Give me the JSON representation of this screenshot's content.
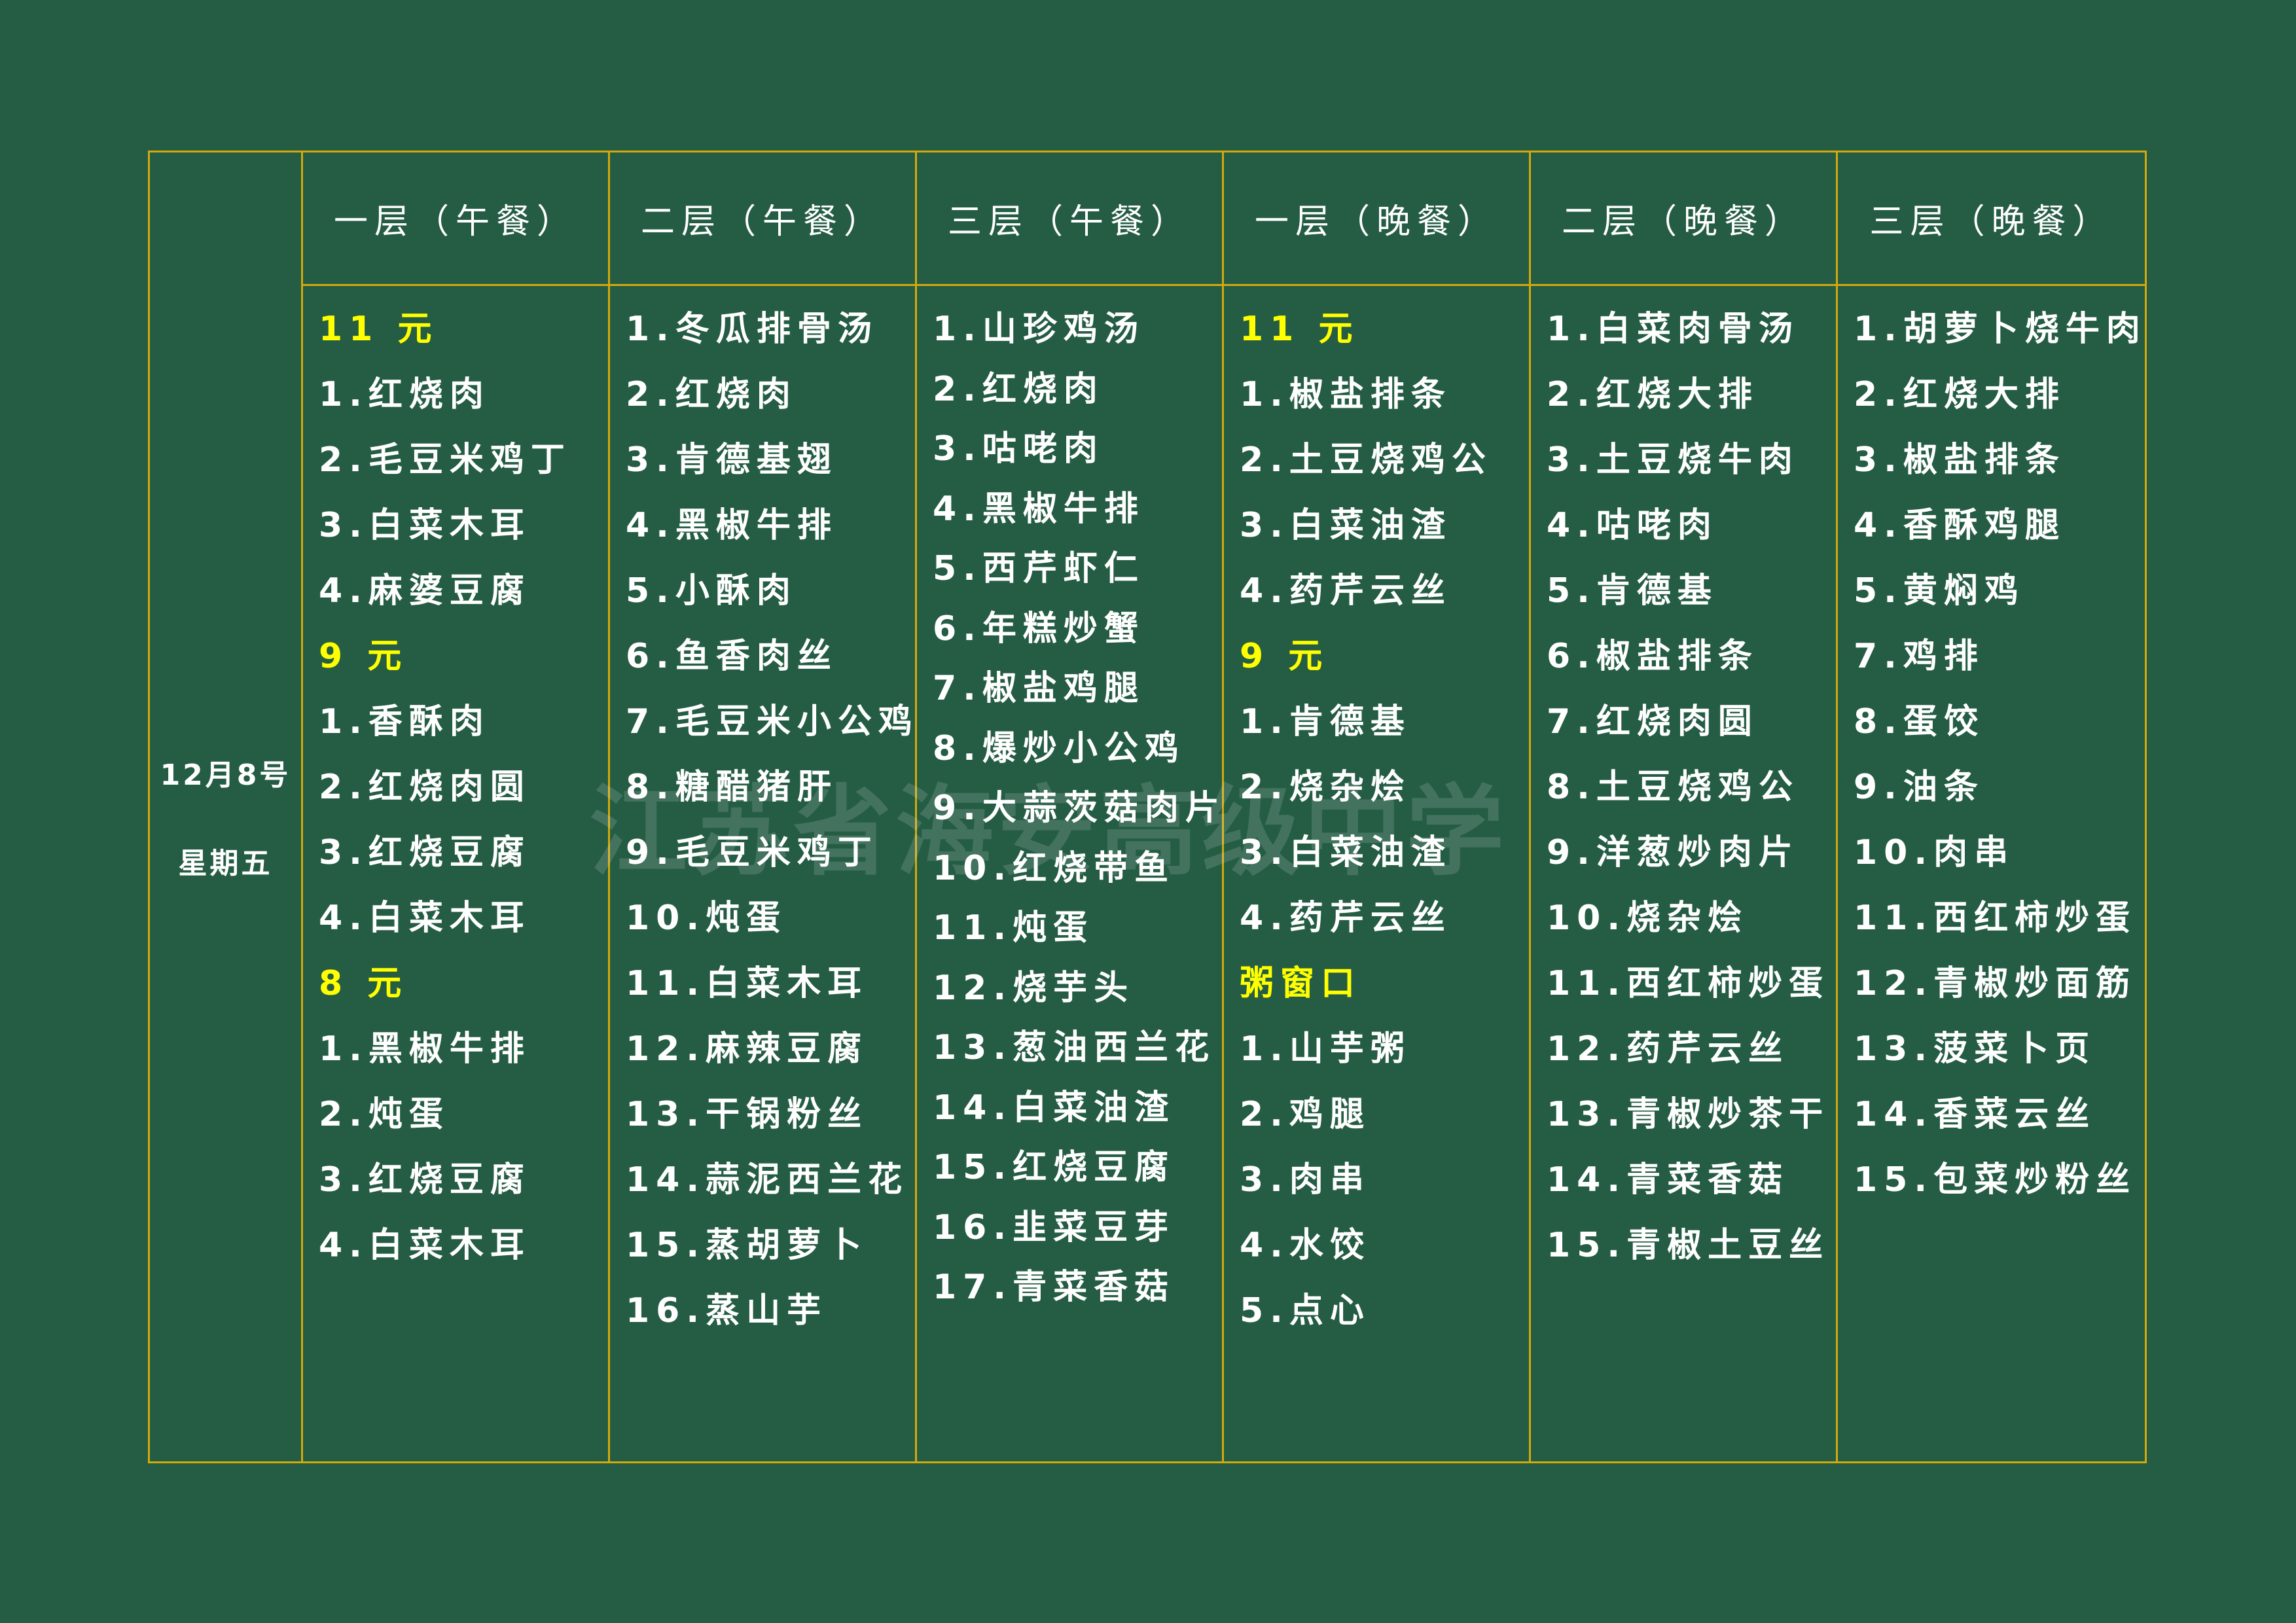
{
  "date": {
    "day": "12月8号",
    "weekday": "星期五"
  },
  "watermark": "江苏省海安高级中学",
  "colors": {
    "background": "#255d44",
    "border": "#d4a90c",
    "category": "#ffff00",
    "text": "#ffffff"
  },
  "columns": [
    {
      "header": "一层（午餐）",
      "lines": [
        {
          "text": "11 元",
          "cat": true
        },
        {
          "text": "1.红烧肉"
        },
        {
          "text": "2.毛豆米鸡丁"
        },
        {
          "text": "3.白菜木耳"
        },
        {
          "text": "4.麻婆豆腐"
        },
        {
          "text": "9 元",
          "cat": true
        },
        {
          "text": "1.香酥肉"
        },
        {
          "text": "2.红烧肉圆"
        },
        {
          "text": "3.红烧豆腐"
        },
        {
          "text": "4.白菜木耳"
        },
        {
          "text": "8 元",
          "cat": true
        },
        {
          "text": "1.黑椒牛排"
        },
        {
          "text": "2.炖蛋"
        },
        {
          "text": "3.红烧豆腐"
        },
        {
          "text": "4.白菜木耳"
        }
      ]
    },
    {
      "header": "二层（午餐）",
      "lines": [
        {
          "text": "1.冬瓜排骨汤"
        },
        {
          "text": "2.红烧肉"
        },
        {
          "text": "3.肯德基翅"
        },
        {
          "text": "4.黑椒牛排"
        },
        {
          "text": "5.小酥肉"
        },
        {
          "text": "6.鱼香肉丝"
        },
        {
          "text": "7.毛豆米小公鸡"
        },
        {
          "text": "8.糖醋猪肝"
        },
        {
          "text": "9.毛豆米鸡丁"
        },
        {
          "text": "10.炖蛋"
        },
        {
          "text": "11.白菜木耳"
        },
        {
          "text": "12.麻辣豆腐"
        },
        {
          "text": "13.干锅粉丝"
        },
        {
          "text": "14.蒜泥西兰花"
        },
        {
          "text": "15.蒸胡萝卜"
        },
        {
          "text": "16.蒸山芋"
        }
      ]
    },
    {
      "header": "三层（午餐）",
      "tight": true,
      "lines": [
        {
          "text": "1.山珍鸡汤"
        },
        {
          "text": "2.红烧肉"
        },
        {
          "text": "3.咕咾肉"
        },
        {
          "text": "4.黑椒牛排"
        },
        {
          "text": "5.西芹虾仁"
        },
        {
          "text": "6.年糕炒蟹"
        },
        {
          "text": "7.椒盐鸡腿"
        },
        {
          "text": "8.爆炒小公鸡"
        },
        {
          "text": "9.大蒜茨菇肉片"
        },
        {
          "text": "10.红烧带鱼"
        },
        {
          "text": "11.炖蛋"
        },
        {
          "text": "12.烧芋头"
        },
        {
          "text": "13.葱油西兰花"
        },
        {
          "text": "14.白菜油渣"
        },
        {
          "text": "15.红烧豆腐"
        },
        {
          "text": "16.韭菜豆芽"
        },
        {
          "text": "17.青菜香菇"
        }
      ]
    },
    {
      "header": "一层（晚餐）",
      "lines": [
        {
          "text": "11 元",
          "cat": true
        },
        {
          "text": "1.椒盐排条"
        },
        {
          "text": "2.土豆烧鸡公"
        },
        {
          "text": "3.白菜油渣"
        },
        {
          "text": "4.药芹云丝"
        },
        {
          "text": "9 元",
          "cat": true
        },
        {
          "text": "1.肯德基"
        },
        {
          "text": "2.烧杂烩"
        },
        {
          "text": "3.白菜油渣"
        },
        {
          "text": "4.药芹云丝"
        },
        {
          "text": "粥窗口",
          "cat": true
        },
        {
          "text": "1.山芋粥"
        },
        {
          "text": "2.鸡腿"
        },
        {
          "text": "3.肉串"
        },
        {
          "text": "4.水饺"
        },
        {
          "text": "5.点心"
        }
      ]
    },
    {
      "header": "二层（晚餐）",
      "lines": [
        {
          "text": "1.白菜肉骨汤"
        },
        {
          "text": "2.红烧大排"
        },
        {
          "text": "3.土豆烧牛肉"
        },
        {
          "text": "4.咕咾肉"
        },
        {
          "text": "5.肯德基"
        },
        {
          "text": "6.椒盐排条"
        },
        {
          "text": "7.红烧肉圆"
        },
        {
          "text": "8.土豆烧鸡公"
        },
        {
          "text": "9.洋葱炒肉片"
        },
        {
          "text": "10.烧杂烩"
        },
        {
          "text": "11.西红柿炒蛋"
        },
        {
          "text": "12.药芹云丝"
        },
        {
          "text": "13.青椒炒茶干"
        },
        {
          "text": "14.青菜香菇"
        },
        {
          "text": "15.青椒土豆丝"
        }
      ]
    },
    {
      "header": "三层（晚餐）",
      "lines": [
        {
          "text": "1.胡萝卜烧牛肉"
        },
        {
          "text": "2.红烧大排"
        },
        {
          "text": "3.椒盐排条"
        },
        {
          "text": "4.香酥鸡腿"
        },
        {
          "text": "5.黄焖鸡"
        },
        {
          "text": "7.鸡排"
        },
        {
          "text": "8.蛋饺"
        },
        {
          "text": "9.油条"
        },
        {
          "text": "10.肉串"
        },
        {
          "text": "11.西红柿炒蛋"
        },
        {
          "text": "12.青椒炒面筋"
        },
        {
          "text": "13.菠菜卜页"
        },
        {
          "text": "14.香菜云丝"
        },
        {
          "text": "15.包菜炒粉丝"
        }
      ]
    }
  ]
}
